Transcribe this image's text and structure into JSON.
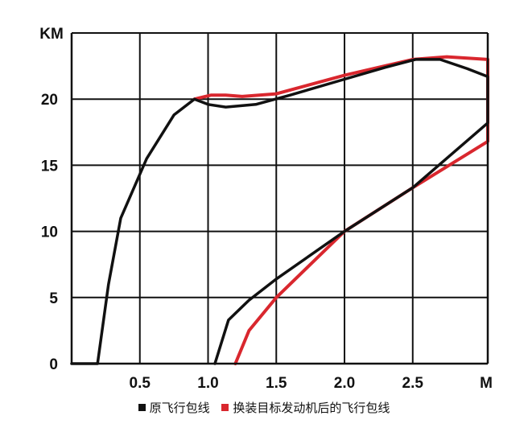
{
  "chart_data": {
    "type": "line",
    "title": "",
    "xlabel": "M",
    "ylabel": "KM",
    "xlim": [
      0,
      3.05
    ],
    "ylim": [
      0,
      25
    ],
    "x_ticks": [
      {
        "value": 0.5,
        "label": "0.5"
      },
      {
        "value": 1.0,
        "label": "1.0"
      },
      {
        "value": 1.5,
        "label": "1.5"
      },
      {
        "value": 2.0,
        "label": "2.0"
      },
      {
        "value": 2.5,
        "label": "2.5"
      }
    ],
    "y_ticks": [
      {
        "value": 0,
        "label": "0"
      },
      {
        "value": 5,
        "label": "5"
      },
      {
        "value": 10,
        "label": "10"
      },
      {
        "value": 15,
        "label": "15"
      },
      {
        "value": 20,
        "label": "20"
      }
    ],
    "x_gridlines": [
      0.5,
      1.0,
      1.5,
      2.0,
      2.5
    ],
    "y_gridlines": [
      5,
      10,
      15,
      20,
      25
    ],
    "grid": true,
    "legend_position": "bottom",
    "series": [
      {
        "name": "原飞行包线",
        "color": "#111111",
        "points": [
          [
            0.0,
            0.0
          ],
          [
            0.19,
            0.0
          ],
          [
            0.27,
            6.0
          ],
          [
            0.36,
            11.0
          ],
          [
            0.55,
            15.5
          ],
          [
            0.75,
            18.8
          ],
          [
            0.9,
            20.0
          ],
          [
            1.0,
            19.6
          ],
          [
            1.13,
            19.4
          ],
          [
            1.35,
            19.6
          ],
          [
            1.6,
            20.3
          ],
          [
            2.0,
            21.5
          ],
          [
            2.3,
            22.4
          ],
          [
            2.52,
            23.0
          ],
          [
            2.7,
            23.0
          ],
          [
            2.9,
            22.3
          ],
          [
            3.05,
            21.7
          ],
          [
            3.05,
            18.2
          ],
          [
            2.5,
            13.3
          ],
          [
            2.0,
            10.0
          ],
          [
            1.75,
            8.2
          ],
          [
            1.5,
            6.4
          ],
          [
            1.3,
            4.8
          ],
          [
            1.15,
            3.3
          ],
          [
            1.05,
            0.0
          ]
        ]
      },
      {
        "name": "换装目标发动机后的飞行包线",
        "color": "#d9272e",
        "points": [
          [
            0.9,
            20.0
          ],
          [
            1.02,
            20.3
          ],
          [
            1.13,
            20.3
          ],
          [
            1.25,
            20.2
          ],
          [
            1.5,
            20.4
          ],
          [
            2.0,
            21.8
          ],
          [
            2.5,
            23.0
          ],
          [
            2.75,
            23.2
          ],
          [
            3.05,
            23.0
          ],
          [
            3.05,
            16.8
          ],
          [
            2.5,
            13.3
          ],
          [
            2.0,
            10.0
          ],
          [
            1.75,
            7.5
          ],
          [
            1.5,
            5.0
          ],
          [
            1.3,
            2.5
          ],
          [
            1.2,
            0.0
          ]
        ]
      }
    ]
  }
}
